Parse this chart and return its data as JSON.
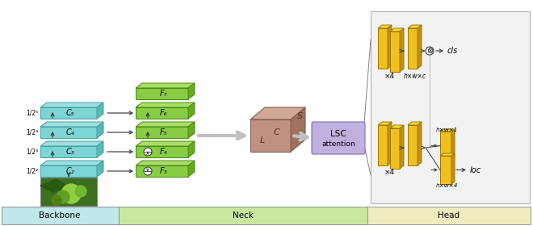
{
  "backbone_color_face": "#7dd4d4",
  "backbone_color_top": "#9ee0e0",
  "backbone_color_right": "#5ab8b8",
  "backbone_color_edge": "#40a0a0",
  "neck_color_face": "#88cc44",
  "neck_color_top": "#aade66",
  "neck_color_right": "#66aa22",
  "neck_color_edge": "#4a8a10",
  "neck_block_face": "#c09080",
  "neck_block_top": "#d0a898",
  "neck_block_right": "#a07060",
  "neck_block_edge": "#806050",
  "lsc_color": "#c0b0e0",
  "lsc_border": "#8070b0",
  "head_box_bg": "#f2f2f2",
  "head_box_border": "#b0b0b0",
  "head_panel_face": "#f0c020",
  "head_panel_top": "#f8d840",
  "head_panel_right": "#c09010",
  "head_panel_edge": "#a07800",
  "bottom_backbone_bg": "#c0e8e8",
  "bottom_neck_bg": "#c8e8a0",
  "bottom_head_bg": "#f0ecc0",
  "bottom_border": "#909090",
  "C_labels": [
    "C₂",
    "C₃",
    "C₄",
    "C₅"
  ],
  "F_labels": [
    "F₃",
    "F₄",
    "F₅",
    "F₆",
    "F₇"
  ],
  "scale_labels": [
    "1/2²",
    "1/2³",
    "1/2⁴",
    "1/2⁵"
  ],
  "cls_label": "cls",
  "loc_label": "loc",
  "x4_label": "×4",
  "Neck_label": "Neck",
  "Backbone_label": "Backbone",
  "Head_label": "Head"
}
